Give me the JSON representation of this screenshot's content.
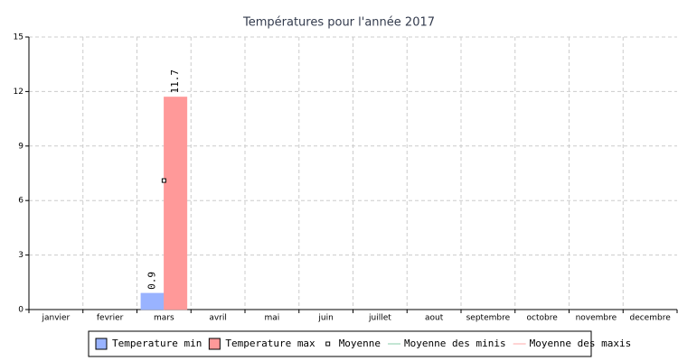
{
  "chart_data": {
    "type": "bar",
    "title": "Températures pour l'année 2017",
    "categories": [
      "janvier",
      "fevrier",
      "mars",
      "avril",
      "mai",
      "juin",
      "juillet",
      "aout",
      "septembre",
      "octobre",
      "novembre",
      "decembre"
    ],
    "series": [
      {
        "name": "Temperature min",
        "type": "bar",
        "color": "#99b3ff",
        "values": [
          null,
          null,
          0.9,
          null,
          null,
          null,
          null,
          null,
          null,
          null,
          null,
          null
        ]
      },
      {
        "name": "Temperature max",
        "type": "bar",
        "color": "#ff9999",
        "values": [
          null,
          null,
          11.7,
          null,
          null,
          null,
          null,
          null,
          null,
          null,
          null,
          null
        ]
      },
      {
        "name": "Moyenne",
        "type": "line",
        "color": "#000000",
        "values": [
          null,
          null,
          7.1,
          null,
          null,
          null,
          null,
          null,
          null,
          null,
          null,
          null
        ]
      },
      {
        "name": "Moyenne des minis",
        "type": "line",
        "color": "#88ccaa",
        "values": [
          null,
          null,
          null,
          null,
          null,
          null,
          null,
          null,
          null,
          null,
          null,
          null
        ]
      },
      {
        "name": "Moyenne des maxis",
        "type": "line",
        "color": "#ffaaaa",
        "values": [
          null,
          null,
          null,
          null,
          null,
          null,
          null,
          null,
          null,
          null,
          null,
          null
        ]
      }
    ],
    "ylim": [
      0,
      15
    ],
    "yticks": [
      0,
      3,
      6,
      9,
      12,
      15
    ],
    "grid": true,
    "legend": "bottom"
  }
}
